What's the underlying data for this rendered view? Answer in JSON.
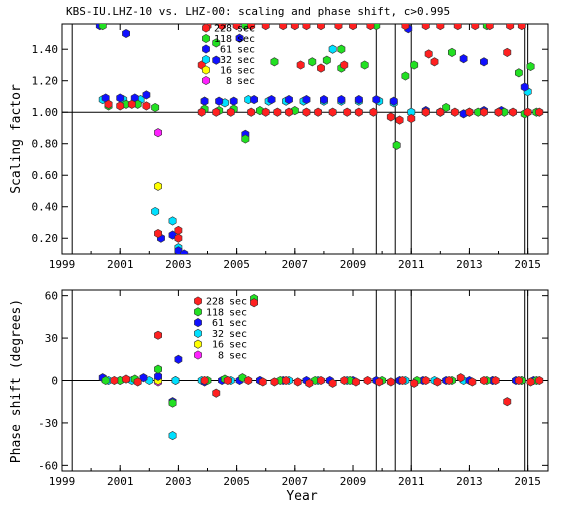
{
  "figure": {
    "title": "KBS-IU.LHZ-10 vs. LHZ-00: scaling and phase shift, c>0.995",
    "xlabel": "Year"
  },
  "colors": {
    "228 sec": "#ff2020",
    "118 sec": "#22e022",
    "61 sec": "#1010ff",
    "32 sec": "#00e0ff",
    "16 sec": "#ffff00",
    "8 sec": "#ff20ff"
  },
  "chart_data": [
    {
      "type": "scatter",
      "title": "KBS-IU.LHZ-10 vs. LHZ-00: scaling and phase shift, c>0.995",
      "xlabel": "",
      "ylabel": "Scaling factor",
      "xlim": [
        1999,
        2015.7
      ],
      "ylim": [
        0.1,
        1.56
      ],
      "x_ticks": [
        "1999",
        "2001",
        "2003",
        "2005",
        "2007",
        "2009",
        "2011",
        "2013",
        "2015"
      ],
      "y_ticks": [
        "0.20",
        "0.40",
        "0.60",
        "0.80",
        "1.00",
        "1.20",
        "1.40"
      ],
      "reference_line": 1.0,
      "vertical_lines": [
        1999.35,
        2009.8,
        2010.45,
        2011.0,
        2014.9,
        2015.0
      ],
      "legend": [
        "228 sec",
        "118 sec",
        "61 sec",
        "32 sec",
        "16 sec",
        "8 sec"
      ],
      "series": [
        {
          "name": "228 sec",
          "points": [
            [
              2000.6,
              1.05
            ],
            [
              2001.0,
              1.04
            ],
            [
              2001.4,
              1.05
            ],
            [
              2001.9,
              1.04
            ],
            [
              2002.3,
              0.23
            ],
            [
              2003.0,
              0.25
            ],
            [
              2003.0,
              0.2
            ],
            [
              2003.8,
              1.0
            ],
            [
              2004.3,
              1.0
            ],
            [
              2004.8,
              1.0
            ],
            [
              2005.5,
              1.0
            ],
            [
              2006.0,
              1.0
            ],
            [
              2006.4,
              1.0
            ],
            [
              2006.8,
              1.0
            ],
            [
              2007.4,
              1.0
            ],
            [
              2007.8,
              1.0
            ],
            [
              2008.3,
              1.0
            ],
            [
              2008.8,
              1.0
            ],
            [
              2009.2,
              1.0
            ],
            [
              2009.7,
              1.0
            ],
            [
              2010.3,
              0.97
            ],
            [
              2010.6,
              0.95
            ],
            [
              2011.0,
              0.96
            ],
            [
              2011.5,
              1.0
            ],
            [
              2012.0,
              1.0
            ],
            [
              2012.5,
              1.0
            ],
            [
              2013.0,
              1.0
            ],
            [
              2013.5,
              1.0
            ],
            [
              2014.0,
              1.0
            ],
            [
              2014.5,
              1.0
            ],
            [
              2015.0,
              1.0
            ],
            [
              2015.4,
              1.0
            ],
            [
              2005.5,
              1.55
            ],
            [
              2006.0,
              1.55
            ],
            [
              2006.6,
              1.55
            ],
            [
              2007.0,
              1.55
            ],
            [
              2007.4,
              1.55
            ],
            [
              2007.9,
              1.55
            ],
            [
              2008.5,
              1.55
            ],
            [
              2009.0,
              1.55
            ],
            [
              2009.6,
              1.55
            ],
            [
              2010.8,
              1.55
            ],
            [
              2011.5,
              1.55
            ],
            [
              2012.0,
              1.55
            ],
            [
              2012.6,
              1.55
            ],
            [
              2013.2,
              1.55
            ],
            [
              2013.7,
              1.55
            ],
            [
              2014.4,
              1.55
            ],
            [
              2014.8,
              1.55
            ],
            [
              2004.0,
              1.55
            ],
            [
              2004.5,
              1.55
            ],
            [
              2005.0,
              1.55
            ],
            [
              2007.2,
              1.3
            ],
            [
              2007.9,
              1.28
            ],
            [
              2008.7,
              1.3
            ],
            [
              2011.6,
              1.37
            ],
            [
              2011.8,
              1.32
            ],
            [
              2014.3,
              1.38
            ],
            [
              2003.8,
              1.3
            ]
          ]
        },
        {
          "name": "118 sec",
          "points": [
            [
              2000.4,
              1.55
            ],
            [
              2000.6,
              1.04
            ],
            [
              2001.2,
              1.05
            ],
            [
              2001.6,
              1.05
            ],
            [
              2002.2,
              1.03
            ],
            [
              2003.9,
              1.02
            ],
            [
              2004.4,
              1.01
            ],
            [
              2004.9,
              1.02
            ],
            [
              2005.3,
              0.83
            ],
            [
              2005.8,
              1.01
            ],
            [
              2006.3,
              1.32
            ],
            [
              2007.0,
              1.01
            ],
            [
              2007.6,
              1.32
            ],
            [
              2008.1,
              1.33
            ],
            [
              2008.6,
              1.28
            ],
            [
              2009.4,
              1.3
            ],
            [
              2010.5,
              0.79
            ],
            [
              2010.8,
              1.23
            ],
            [
              2011.1,
              1.3
            ],
            [
              2011.5,
              1.0
            ],
            [
              2012.2,
              1.03
            ],
            [
              2013.3,
              1.0
            ],
            [
              2014.2,
              1.0
            ],
            [
              2014.9,
              0.99
            ],
            [
              2015.3,
              1.0
            ],
            [
              2004.3,
              1.44
            ],
            [
              2008.6,
              1.4
            ],
            [
              2012.4,
              1.38
            ],
            [
              2005.3,
              1.55
            ],
            [
              2009.8,
              1.55
            ],
            [
              2013.6,
              1.55
            ],
            [
              2015.1,
              1.29
            ],
            [
              2014.7,
              1.25
            ]
          ]
        },
        {
          "name": "61 sec",
          "points": [
            [
              2000.3,
              1.55
            ],
            [
              2000.5,
              1.09
            ],
            [
              2001.0,
              1.09
            ],
            [
              2001.5,
              1.09
            ],
            [
              2001.9,
              1.11
            ],
            [
              2002.4,
              0.2
            ],
            [
              2002.8,
              0.22
            ],
            [
              2003.0,
              0.12
            ],
            [
              2003.2,
              0.1
            ],
            [
              2003.9,
              1.07
            ],
            [
              2004.4,
              1.07
            ],
            [
              2004.9,
              1.07
            ],
            [
              2005.3,
              0.86
            ],
            [
              2005.6,
              1.08
            ],
            [
              2006.2,
              1.08
            ],
            [
              2006.8,
              1.08
            ],
            [
              2007.4,
              1.08
            ],
            [
              2008.0,
              1.08
            ],
            [
              2008.6,
              1.08
            ],
            [
              2009.2,
              1.08
            ],
            [
              2009.8,
              1.08
            ],
            [
              2010.4,
              1.07
            ],
            [
              2010.9,
              1.53
            ],
            [
              2011.5,
              1.01
            ],
            [
              2012.0,
              1.0
            ],
            [
              2012.8,
              0.99
            ],
            [
              2013.5,
              1.01
            ],
            [
              2014.1,
              1.01
            ],
            [
              2014.9,
              1.16
            ],
            [
              2001.2,
              1.5
            ],
            [
              2004.3,
              1.33
            ],
            [
              2005.1,
              1.47
            ],
            [
              2012.8,
              1.34
            ],
            [
              2013.5,
              1.32
            ]
          ]
        },
        {
          "name": "32 sec",
          "points": [
            [
              2000.4,
              1.08
            ],
            [
              2001.1,
              1.08
            ],
            [
              2001.7,
              1.08
            ],
            [
              2002.2,
              0.37
            ],
            [
              2002.8,
              0.31
            ],
            [
              2003.0,
              0.14
            ],
            [
              2003.9,
              1.07
            ],
            [
              2004.6,
              1.06
            ],
            [
              2005.4,
              1.08
            ],
            [
              2006.1,
              1.07
            ],
            [
              2006.7,
              1.07
            ],
            [
              2007.3,
              1.07
            ],
            [
              2008.0,
              1.07
            ],
            [
              2008.6,
              1.07
            ],
            [
              2009.2,
              1.07
            ],
            [
              2009.9,
              1.07
            ],
            [
              2010.4,
              1.06
            ],
            [
              2011.0,
              1.0
            ],
            [
              2012.0,
              1.0
            ],
            [
              2013.0,
              1.0
            ],
            [
              2014.0,
              1.0
            ],
            [
              2015.0,
              1.13
            ],
            [
              2008.3,
              1.4
            ]
          ]
        },
        {
          "name": "16 sec",
          "points": [
            [
              2002.3,
              0.53
            ]
          ]
        },
        {
          "name": "8 sec",
          "points": [
            [
              2002.3,
              0.87
            ]
          ]
        }
      ]
    },
    {
      "type": "scatter",
      "title": "",
      "xlabel": "Year",
      "ylabel": "Phase shift (degrees)",
      "xlim": [
        1999,
        2015.7
      ],
      "ylim": [
        -64,
        64
      ],
      "x_ticks": [
        "1999",
        "2001",
        "2003",
        "2005",
        "2007",
        "2009",
        "2011",
        "2013",
        "2015"
      ],
      "y_ticks": [
        "-60",
        "-30",
        "0",
        "30",
        "60"
      ],
      "reference_line": 0,
      "vertical_lines": [
        1999.35,
        2009.8,
        2010.45,
        2011.0,
        2014.9,
        2015.0
      ],
      "legend": [
        "228 sec",
        "118 sec",
        "61 sec",
        "32 sec",
        "16 sec",
        "8 sec"
      ],
      "series": [
        {
          "name": "228 sec",
          "points": [
            [
              2000.8,
              0
            ],
            [
              2001.2,
              1
            ],
            [
              2001.6,
              -1
            ],
            [
              2002.3,
              32
            ],
            [
              2003.9,
              0
            ],
            [
              2004.3,
              -9
            ],
            [
              2004.7,
              0
            ],
            [
              2005.4,
              0
            ],
            [
              2005.9,
              -1
            ],
            [
              2006.3,
              -1
            ],
            [
              2006.7,
              0
            ],
            [
              2007.1,
              -1
            ],
            [
              2007.5,
              -2
            ],
            [
              2007.9,
              0
            ],
            [
              2008.3,
              -2
            ],
            [
              2008.7,
              0
            ],
            [
              2009.1,
              -1
            ],
            [
              2009.5,
              0
            ],
            [
              2009.9,
              -1
            ],
            [
              2010.3,
              -1
            ],
            [
              2010.7,
              0
            ],
            [
              2011.1,
              -2
            ],
            [
              2011.5,
              0
            ],
            [
              2011.9,
              -1
            ],
            [
              2012.3,
              0
            ],
            [
              2012.7,
              2
            ],
            [
              2013.1,
              -1
            ],
            [
              2013.5,
              0
            ],
            [
              2013.9,
              0
            ],
            [
              2014.3,
              -15
            ],
            [
              2014.7,
              0
            ],
            [
              2015.1,
              -1
            ],
            [
              2015.4,
              0
            ],
            [
              2005.6,
              55
            ]
          ]
        },
        {
          "name": "118 sec",
          "points": [
            [
              2000.5,
              0
            ],
            [
              2001.0,
              0
            ],
            [
              2001.5,
              1
            ],
            [
              2002.3,
              8
            ],
            [
              2002.8,
              -16
            ],
            [
              2004.0,
              0
            ],
            [
              2004.6,
              1
            ],
            [
              2005.2,
              2
            ],
            [
              2005.6,
              58
            ],
            [
              2006.5,
              0
            ],
            [
              2007.7,
              0
            ],
            [
              2008.9,
              0
            ],
            [
              2010.0,
              0
            ],
            [
              2011.2,
              0
            ],
            [
              2012.4,
              0
            ],
            [
              2013.6,
              0
            ],
            [
              2014.8,
              0
            ],
            [
              2015.3,
              0
            ]
          ]
        },
        {
          "name": "61 sec",
          "points": [
            [
              2000.4,
              2
            ],
            [
              2001.0,
              0
            ],
            [
              2001.8,
              2
            ],
            [
              2002.3,
              3
            ],
            [
              2002.8,
              -15
            ],
            [
              2003.0,
              15
            ],
            [
              2003.9,
              -1
            ],
            [
              2004.5,
              0
            ],
            [
              2005.1,
              0
            ],
            [
              2005.8,
              0
            ],
            [
              2006.6,
              0
            ],
            [
              2007.4,
              0
            ],
            [
              2008.2,
              0
            ],
            [
              2009.0,
              0
            ],
            [
              2009.8,
              0
            ],
            [
              2010.6,
              0
            ],
            [
              2011.4,
              0
            ],
            [
              2012.2,
              0
            ],
            [
              2013.0,
              0
            ],
            [
              2013.8,
              0
            ],
            [
              2014.6,
              0
            ],
            [
              2015.2,
              0
            ]
          ]
        },
        {
          "name": "32 sec",
          "points": [
            [
              2000.6,
              0
            ],
            [
              2001.4,
              0
            ],
            [
              2002.0,
              0
            ],
            [
              2002.8,
              -39
            ],
            [
              2002.9,
              0
            ],
            [
              2003.8,
              0
            ],
            [
              2004.8,
              0
            ],
            [
              2005.8,
              0
            ],
            [
              2006.8,
              0
            ],
            [
              2007.8,
              0
            ],
            [
              2008.8,
              0
            ],
            [
              2009.8,
              0
            ],
            [
              2010.8,
              0
            ],
            [
              2011.8,
              0
            ],
            [
              2012.8,
              0
            ],
            [
              2013.8,
              0
            ],
            [
              2014.8,
              0
            ]
          ]
        },
        {
          "name": "16 sec",
          "points": [
            [
              2002.3,
              0
            ]
          ]
        },
        {
          "name": "8 sec",
          "points": [
            [
              2002.3,
              -1
            ],
            [
              2002.9,
              0
            ]
          ]
        }
      ]
    }
  ]
}
